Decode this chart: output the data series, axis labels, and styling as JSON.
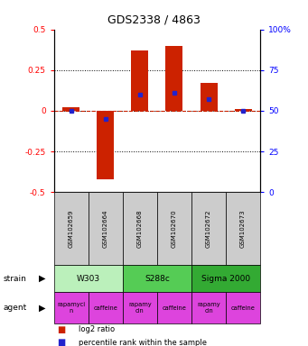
{
  "title": "GDS2338 / 4863",
  "samples": [
    "GSM102659",
    "GSM102664",
    "GSM102668",
    "GSM102670",
    "GSM102672",
    "GSM102673"
  ],
  "log2_ratios": [
    0.02,
    -0.42,
    0.37,
    0.4,
    0.17,
    0.01
  ],
  "percentile_ranks": [
    50,
    45,
    60,
    61,
    57,
    50
  ],
  "strains": [
    {
      "label": "W303",
      "start": 0,
      "end": 2,
      "color": "#bbf0bb"
    },
    {
      "label": "S288c",
      "start": 2,
      "end": 4,
      "color": "#55cc55"
    },
    {
      "label": "Sigma 2000",
      "start": 4,
      "end": 6,
      "color": "#33aa33"
    }
  ],
  "ylim": [
    -0.5,
    0.5
  ],
  "yticks_left": [
    -0.5,
    -0.25,
    0.0,
    0.25,
    0.5
  ],
  "yticks_right": [
    0,
    25,
    50,
    75,
    100
  ],
  "bar_color": "#cc2200",
  "dot_color": "#2222cc",
  "zero_line_color": "#cc2200",
  "grid_color": "#000000",
  "sample_bg": "#cccccc",
  "agent_color": "#dd44dd",
  "legend_bar_color": "#cc2200",
  "legend_dot_color": "#2222cc"
}
